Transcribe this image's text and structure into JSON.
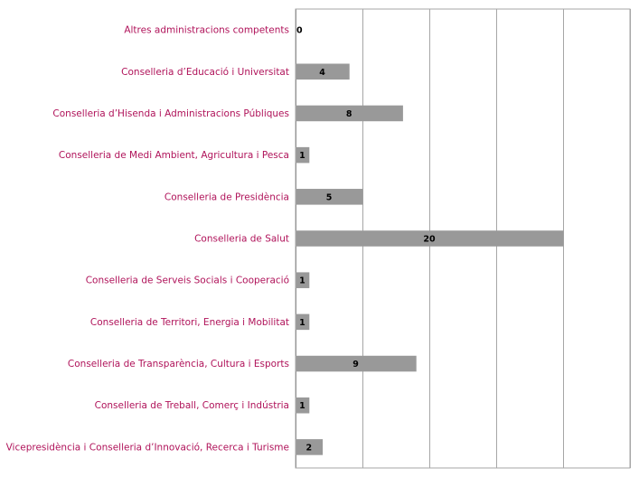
{
  "chart_data": {
    "type": "bar",
    "orientation": "horizontal",
    "categories": [
      "Altres administracions competents",
      "Conselleria d’Educació i Universitat",
      "Conselleria d’Hisenda i Administracions Públiques",
      "Conselleria de Medi Ambient, Agricultura i Pesca",
      "Conselleria de Presidència",
      "Conselleria de Salut",
      "Conselleria de Serveis Socials i Cooperació",
      "Conselleria de Territori, Energia i Mobilitat",
      "Conselleria de Transparència, Cultura i Esports",
      "Conselleria de Treball, Comerç i Indústria",
      "Vicepresidència i Conselleria d’Innovació, Recerca i Turisme"
    ],
    "values": [
      0,
      4,
      8,
      1,
      5,
      20,
      1,
      1,
      9,
      1,
      2
    ],
    "xlim": [
      0,
      25
    ],
    "x_gridlines": [
      0,
      5,
      10,
      15,
      20,
      25
    ],
    "grid": true,
    "legend": "none",
    "data_labels": true,
    "title": "",
    "xlabel": "",
    "ylabel": "",
    "colors": {
      "bar": "#999999",
      "category_label": "#b0135a",
      "value_label": "#000000",
      "grid": "#a6a6a6"
    }
  }
}
